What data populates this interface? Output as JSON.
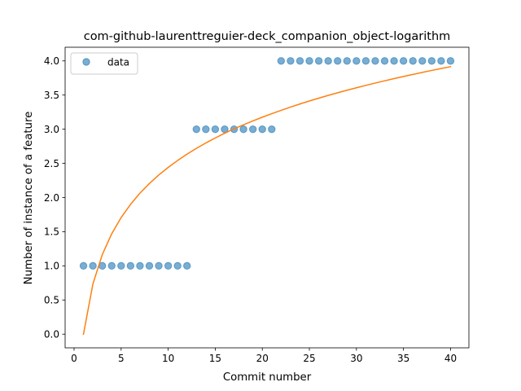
{
  "chart_data": {
    "type": "scatter",
    "title": "com-github-laurenttreguier-deck_companion_object-logarithm",
    "xlabel": "Commit number",
    "ylabel": "Number of instance of a feature",
    "xlim": [
      -0.95,
      41.95
    ],
    "ylim": [
      -0.2,
      4.2
    ],
    "x_ticks": [
      0,
      5,
      10,
      15,
      20,
      25,
      30,
      35,
      40
    ],
    "y_ticks": [
      0.0,
      0.5,
      1.0,
      1.5,
      2.0,
      2.5,
      3.0,
      3.5,
      4.0
    ],
    "x_tick_labels": [
      "0",
      "5",
      "10",
      "15",
      "20",
      "25",
      "30",
      "35",
      "40"
    ],
    "y_tick_labels": [
      "0.0",
      "0.5",
      "1.0",
      "1.5",
      "2.0",
      "2.5",
      "3.0",
      "3.5",
      "4.0"
    ],
    "grid": false,
    "legend_position": "top-left",
    "series": [
      {
        "name": "data",
        "kind": "scatter",
        "color": "#1f77b4",
        "x": [
          1,
          2,
          3,
          4,
          5,
          6,
          7,
          8,
          9,
          10,
          11,
          12,
          13,
          14,
          15,
          16,
          17,
          18,
          19,
          20,
          21,
          22,
          23,
          24,
          25,
          26,
          27,
          28,
          29,
          30,
          31,
          32,
          33,
          34,
          35,
          36,
          37,
          38,
          39,
          40
        ],
        "y": [
          1,
          1,
          1,
          1,
          1,
          1,
          1,
          1,
          1,
          1,
          1,
          1,
          3,
          3,
          3,
          3,
          3,
          3,
          3,
          3,
          3,
          4,
          4,
          4,
          4,
          4,
          4,
          4,
          4,
          4,
          4,
          4,
          4,
          4,
          4,
          4,
          4,
          4,
          4,
          4
        ]
      },
      {
        "kind": "line",
        "color": "#ff7f0e",
        "x": [
          1,
          2,
          3,
          4,
          5,
          6,
          7,
          8,
          9,
          10,
          11,
          12,
          13,
          14,
          15,
          16,
          17,
          18,
          19,
          20,
          21,
          22,
          23,
          24,
          25,
          26,
          27,
          28,
          29,
          30,
          31,
          32,
          33,
          34,
          35,
          36,
          37,
          38,
          39,
          40
        ],
        "y": [
          0.0,
          0.735,
          1.165,
          1.47,
          1.707,
          1.9,
          2.064,
          2.205,
          2.33,
          2.441,
          2.542,
          2.635,
          2.72,
          2.799,
          2.872,
          2.941,
          3.006,
          3.065,
          3.122,
          3.176,
          3.228,
          3.277,
          3.324,
          3.37,
          3.413,
          3.455,
          3.495,
          3.534,
          3.571,
          3.607,
          3.642,
          3.676,
          3.709,
          3.741,
          3.772,
          3.802,
          3.832,
          3.861,
          3.889,
          3.916
        ]
      }
    ]
  }
}
